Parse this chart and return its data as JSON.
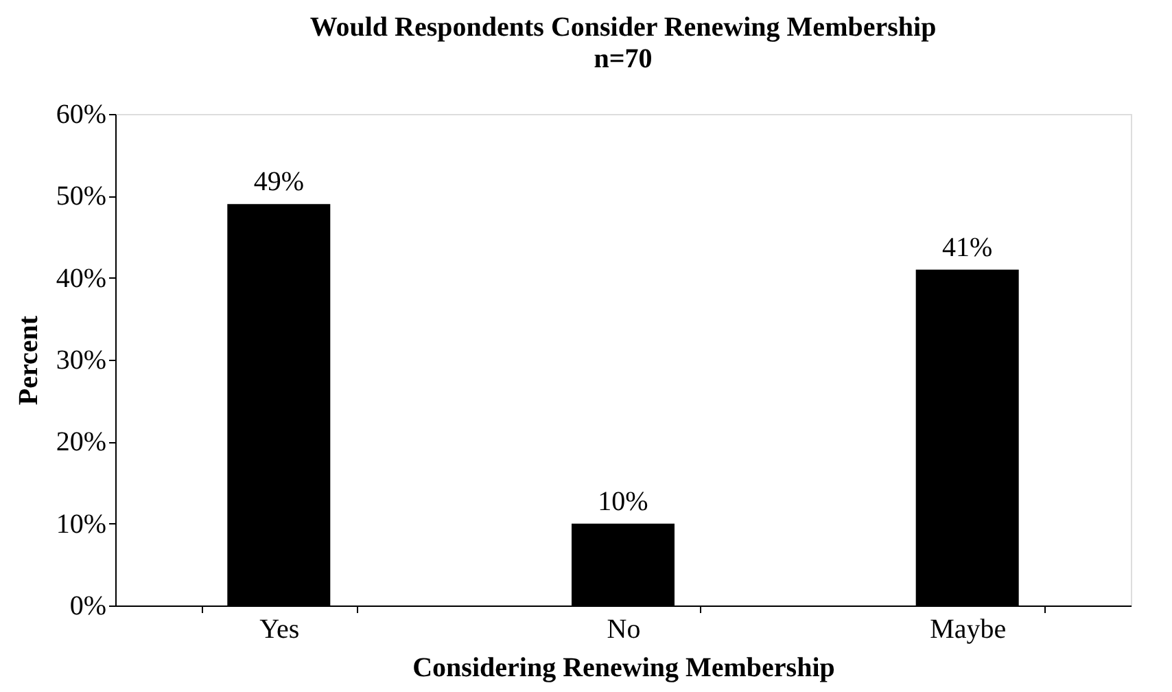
{
  "chart_data": {
    "type": "bar",
    "title": "Would Respondents Consider Renewing Membership",
    "subtitle": "n=70",
    "xlabel": "Considering Renewing Membership",
    "ylabel": "Percent",
    "categories": [
      "Yes",
      "No",
      "Maybe"
    ],
    "values": [
      49,
      10,
      41
    ],
    "color": "#000000",
    "value_labels": [
      "49%",
      "10%",
      "41%"
    ],
    "ylim": [
      0,
      60
    ],
    "yticks": [
      {
        "value": 0,
        "label": "0%"
      },
      {
        "value": 10,
        "label": "10%"
      },
      {
        "value": 20,
        "label": "20%"
      },
      {
        "value": 30,
        "label": "30%"
      },
      {
        "value": 40,
        "label": "40%"
      },
      {
        "value": 50,
        "label": "50%"
      },
      {
        "value": 60,
        "label": "60%"
      }
    ],
    "grid": false
  }
}
